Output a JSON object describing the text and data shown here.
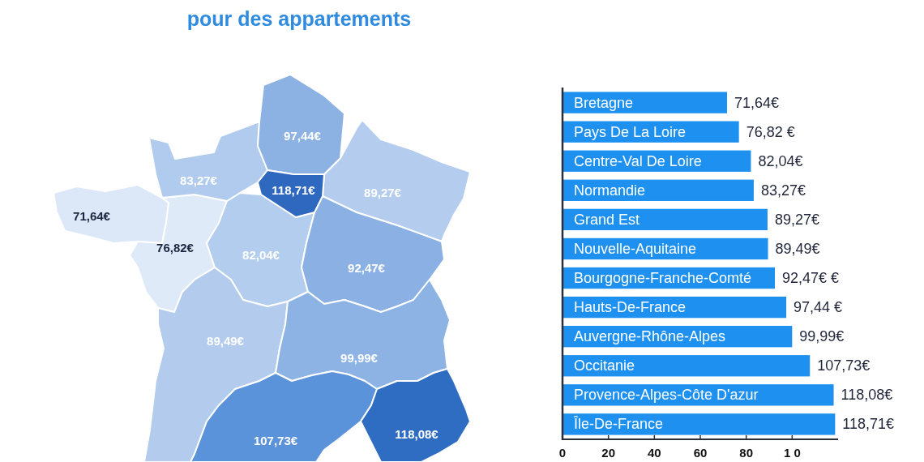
{
  "chart_data": [
    {
      "type": "other",
      "title": "pour des appartements",
      "annotations": [
        "71,64€",
        "76,82€",
        "82,04€",
        "83,27€",
        "89,27€",
        "89,49€",
        "92,47€",
        "97,44€",
        "99,99€",
        "107,73€",
        "118,08€",
        "118,71€"
      ],
      "colors": [
        "#dce8f7",
        "#dfeaf8",
        "#b3cdee",
        "#b1cbee",
        "#b4cdef",
        "#b3ccee",
        "#8ab0e4",
        "#8cb1e3",
        "#8db3e5",
        "#5b93da",
        "#2f6dc3",
        "#2f68bf"
      ]
    },
    {
      "type": "bar",
      "orientation": "horizontal",
      "categories": [
        "Bretagne",
        "Pays De La Loire",
        "Centre-Val De Loire",
        "Normandie",
        "Grand Est",
        "Nouvelle-Aquitaine",
        "Bourgogne-Franche-Comté",
        "Hauts-De-France",
        "Auvergne-Rhône-Alpes",
        "Occitanie",
        "Provence-Alpes-Côte D'azur",
        "Île-De-France"
      ],
      "values": [
        71.64,
        76.82,
        82.04,
        83.27,
        89.27,
        89.49,
        92.47,
        97.44,
        99.99,
        107.73,
        118.08,
        118.71
      ],
      "value_labels": [
        "71,64€",
        "76,82 €",
        "82,04€",
        "83,27€",
        "89,27€",
        "89,49€",
        "92,47€ €",
        "97,44 €",
        "99,99€",
        "107,73€",
        "118,08€",
        "118,71€"
      ],
      "color": "#1e90f0",
      "xlim": [
        0,
        120
      ],
      "xticks": [
        0,
        20,
        40,
        60,
        80,
        {
          "value": 100,
          "label": "1 0"
        }
      ]
    }
  ]
}
